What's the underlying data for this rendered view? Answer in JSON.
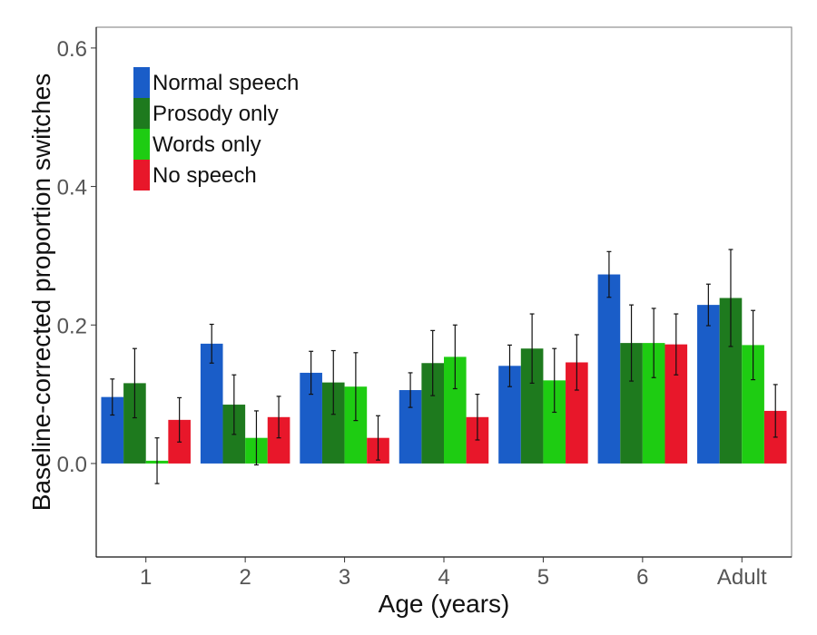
{
  "chart_data": {
    "type": "bar",
    "xlabel": "Age (years)",
    "ylabel": "Baseline-corrected proportion switches",
    "categories": [
      "1",
      "2",
      "3",
      "4",
      "5",
      "6",
      "Adult"
    ],
    "ylim": [
      -0.135,
      0.63
    ],
    "yticks": [
      0.0,
      0.2,
      0.4,
      0.6
    ],
    "ytick_labels": [
      "0.0",
      "0.2",
      "0.4",
      "0.6"
    ],
    "grid": false,
    "legend_position": "top-left",
    "series": [
      {
        "name": "Normal speech",
        "color": "#1a5dc8",
        "values": [
          0.096,
          0.173,
          0.131,
          0.106,
          0.141,
          0.273,
          0.229
        ],
        "errors": [
          0.026,
          0.028,
          0.031,
          0.025,
          0.03,
          0.033,
          0.03
        ]
      },
      {
        "name": "Prosody only",
        "color": "#1e7a1e",
        "values": [
          0.116,
          0.085,
          0.117,
          0.145,
          0.166,
          0.174,
          0.239
        ],
        "errors": [
          0.05,
          0.043,
          0.046,
          0.047,
          0.05,
          0.055,
          0.07
        ]
      },
      {
        "name": "Words only",
        "color": "#1ecc12",
        "values": [
          0.004,
          0.037,
          0.111,
          0.154,
          0.12,
          0.174,
          0.171
        ],
        "errors": [
          0.033,
          0.039,
          0.049,
          0.046,
          0.046,
          0.05,
          0.05
        ]
      },
      {
        "name": "No speech",
        "color": "#e8172a",
        "values": [
          0.063,
          0.067,
          0.037,
          0.067,
          0.146,
          0.172,
          0.076
        ],
        "errors": [
          0.032,
          0.03,
          0.032,
          0.033,
          0.04,
          0.044,
          0.038
        ]
      }
    ]
  }
}
